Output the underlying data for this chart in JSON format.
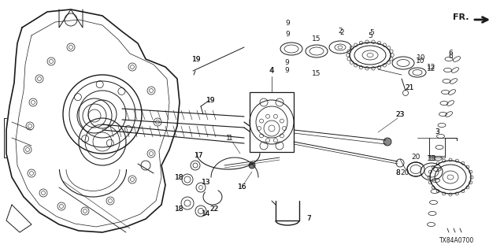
{
  "bg_color": "#ffffff",
  "line_color": "#1a1a1a",
  "text_color": "#1a1a1a",
  "diagram_code": "TX84A0700",
  "fig_w": 6.4,
  "fig_h": 3.2,
  "dpi": 100
}
